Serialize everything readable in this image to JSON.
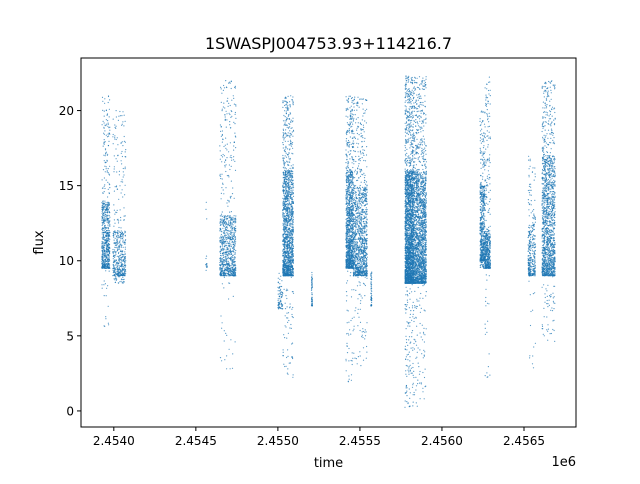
{
  "chart_data": {
    "type": "scatter",
    "title": "1SWASPJ004753.93+114216.7",
    "xlabel": "time",
    "ylabel": "flux",
    "x_offset_label": "1e6",
    "xlim": [
      2453800,
      2456817
    ],
    "ylim": [
      -1.07,
      23.5
    ],
    "xticks": [
      2454000,
      2454500,
      2455000,
      2455500,
      2456000,
      2456500
    ],
    "xtick_labels": [
      "2.4540",
      "2.4545",
      "2.4550",
      "2.4555",
      "2.4560",
      "2.4565"
    ],
    "yticks": [
      0,
      5,
      10,
      15,
      20
    ],
    "ytick_labels": [
      "0",
      "5",
      "10",
      "15",
      "20"
    ],
    "grid": false,
    "marker_color": "#1f77b4",
    "observing_seasons": [
      {
        "t_start": 2453927,
        "t_end": 2453976,
        "flux_base": 9.5,
        "flux_dense_top": 14,
        "flux_max": 21,
        "flux_min": 4.5,
        "n": 700
      },
      {
        "t_start": 2453994,
        "t_end": 2454073,
        "flux_base": 9.0,
        "flux_dense_top": 12,
        "flux_max": 20,
        "flux_min": 8.5,
        "n": 500
      },
      {
        "t_start": 2454560,
        "t_end": 2454570,
        "flux_base": 9.5,
        "flux_dense_top": 10,
        "flux_max": 14.5,
        "flux_min": 9.3,
        "n": 15
      },
      {
        "t_start": 2454646,
        "t_end": 2454744,
        "flux_base": 9.0,
        "flux_dense_top": 13,
        "flux_max": 22,
        "flux_min": 2.5,
        "n": 900
      },
      {
        "t_start": 2455000,
        "t_end": 2455030,
        "flux_base": 6.8,
        "flux_dense_top": 8.5,
        "flux_max": 9.5,
        "flux_min": 6.8,
        "n": 80
      },
      {
        "t_start": 2455030,
        "t_end": 2455095,
        "flux_base": 9.0,
        "flux_dense_top": 16,
        "flux_max": 21,
        "flux_min": 2.2,
        "n": 1600
      },
      {
        "t_start": 2455205,
        "t_end": 2455210,
        "flux_base": 7.0,
        "flux_dense_top": 9.3,
        "flux_max": 9.3,
        "flux_min": 7.0,
        "n": 60
      },
      {
        "t_start": 2455415,
        "t_end": 2455460,
        "flux_base": 9.5,
        "flux_dense_top": 16,
        "flux_max": 21,
        "flux_min": 1.8,
        "n": 1200
      },
      {
        "t_start": 2455460,
        "t_end": 2455545,
        "flux_base": 9.0,
        "flux_dense_top": 15,
        "flux_max": 21,
        "flux_min": 3,
        "n": 1200
      },
      {
        "t_start": 2455567,
        "t_end": 2455572,
        "flux_base": 7.0,
        "flux_dense_top": 9.3,
        "flux_max": 9.3,
        "flux_min": 7.0,
        "n": 60
      },
      {
        "t_start": 2455775,
        "t_end": 2455830,
        "flux_base": 8.5,
        "flux_dense_top": 16,
        "flux_max": 22.3,
        "flux_min": 0.2,
        "n": 2600
      },
      {
        "t_start": 2455830,
        "t_end": 2455905,
        "flux_base": 8.5,
        "flux_dense_top": 16,
        "flux_max": 22.3,
        "flux_min": 0.3,
        "n": 2000
      },
      {
        "t_start": 2456232,
        "t_end": 2456262,
        "flux_base": 10.0,
        "flux_dense_top": 15,
        "flux_max": 20,
        "flux_min": 9.5,
        "n": 600
      },
      {
        "t_start": 2456262,
        "t_end": 2456295,
        "flux_base": 9.5,
        "flux_dense_top": 12,
        "flux_max": 22.3,
        "flux_min": 1.5,
        "n": 500
      },
      {
        "t_start": 2456525,
        "t_end": 2456545,
        "flux_base": 9.0,
        "flux_dense_top": 12,
        "flux_max": 17,
        "flux_min": 2.8,
        "n": 200
      },
      {
        "t_start": 2456550,
        "t_end": 2456570,
        "flux_base": 9.0,
        "flux_dense_top": 13,
        "flux_max": 16.5,
        "flux_min": 2.2,
        "n": 150
      },
      {
        "t_start": 2456610,
        "t_end": 2456690,
        "flux_base": 9.0,
        "flux_dense_top": 17,
        "flux_max": 22,
        "flux_min": 4.5,
        "n": 1500
      }
    ]
  }
}
